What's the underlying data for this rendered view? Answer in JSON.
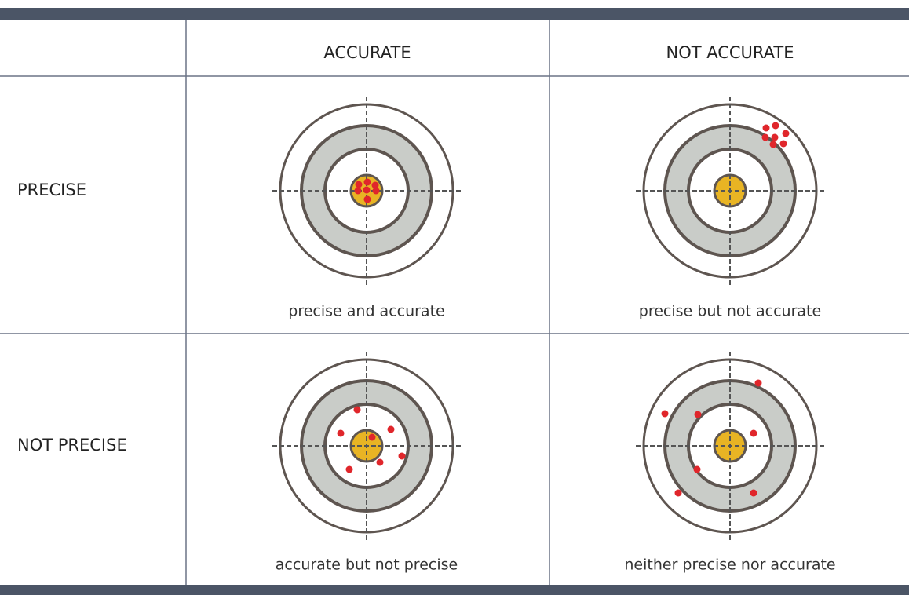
{
  "header": {
    "columns": [
      "ACCURATE",
      "NOT ACCURATE"
    ]
  },
  "rows": [
    {
      "label": "PRECISE",
      "cells": [
        "precise and accurate",
        "precise but not accurate"
      ]
    },
    {
      "label": "NOT PRECISE",
      "cells": [
        "accurate but not precise",
        "neither precise nor accurate"
      ]
    }
  ]
}
